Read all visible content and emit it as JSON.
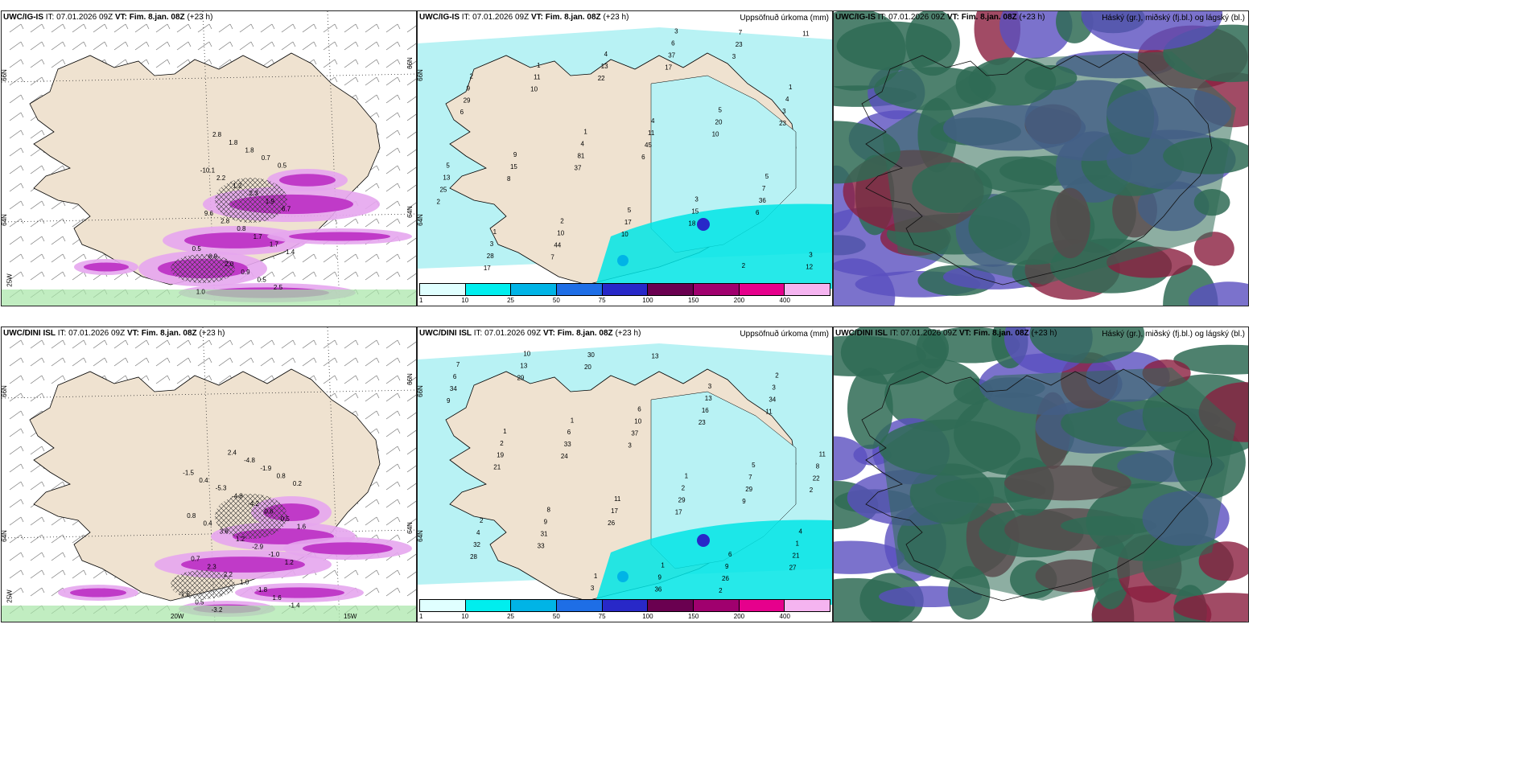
{
  "panels": [
    {
      "id": "p1",
      "model": "UWC/IG-IS",
      "it_label": "IT:",
      "it": "07.01.2026 09Z",
      "vt_label": "VT:",
      "vt": "Fim. 8.jan. 08Z",
      "lead": "(+23 h)",
      "right_title": "",
      "kind": "wind",
      "lat_labels": [
        "66N",
        "64N"
      ],
      "lat_right": [
        "66N",
        "64N"
      ],
      "lon_labels": [
        "25W"
      ],
      "values": [
        "0.5",
        "1.0",
        "-10.1",
        "9.6",
        "6.9",
        "2.8",
        "2.2",
        "2.8",
        "2.0",
        "1.8",
        "1.2",
        "0.8",
        "0.9",
        "1.8",
        "2.3",
        "1.7",
        "0.5",
        "0.7",
        "1.9",
        "1.7",
        "2.5",
        "0.5",
        "6.7",
        "1.4"
      ]
    },
    {
      "id": "p2",
      "model": "UWC/IG-IS",
      "it_label": "IT:",
      "it": "07.01.2026 09Z",
      "vt_label": "VT:",
      "vt": "Fim. 8.jan. 08Z",
      "lead": "(+23 h)",
      "right_title": "Uppsöfnuð úrkoma (mm)",
      "kind": "precip",
      "lat_labels": [
        "66N",
        "64N"
      ],
      "values": [
        "1",
        "1",
        "1",
        "3",
        "5",
        "2",
        "2",
        "4",
        "2",
        "5",
        "1",
        "5",
        "5",
        "3",
        "9",
        "4",
        "3",
        "4",
        "3",
        "4",
        "6",
        "7",
        "9",
        "10",
        "11",
        "7",
        "13",
        "11",
        "17",
        "20",
        "12",
        "15",
        "13",
        "15",
        "3",
        "28",
        "81",
        "37",
        "36",
        "29",
        "44",
        "45",
        "23",
        "25",
        "10",
        "10",
        "10",
        "11",
        "8",
        "22",
        "18",
        "23",
        "17",
        "37",
        "17",
        "6",
        "6",
        "7",
        "6",
        "3",
        "2"
      ]
    },
    {
      "id": "p3",
      "model": "UWC/IG-IS",
      "it_label": "IT:",
      "it": "07.01.2026 09Z",
      "vt_label": "VT:",
      "vt": "Fim. 8.jan. 08Z",
      "lead": "(+23 h)",
      "right_title": "Háský (gr.), miðský (fj.bl.) og lágský (bl.)",
      "kind": "cloud"
    },
    {
      "id": "p4",
      "model": "UWC/DINI ISL",
      "it_label": "IT:",
      "it": "07.01.2026 09Z",
      "vt_label": "VT:",
      "vt": "Fim. 8.jan. 08Z",
      "lead": "(+23 h)",
      "right_title": "",
      "kind": "wind",
      "lat_labels": [
        "66N",
        "64N"
      ],
      "lat_right": [
        "66N",
        "64N"
      ],
      "lon_labels": [
        "25W",
        "20W",
        "15W"
      ],
      "values": [
        "-1.5",
        "-1.5",
        "0.8",
        "0.7",
        "0.5",
        "0.4",
        "0.4",
        "2.3",
        "-3.2",
        "-5.3",
        "3.6",
        "2.2",
        "2.4",
        "-4.8",
        "1.2",
        "1.0",
        "-4.8",
        "-4.2",
        "-2.9",
        "-1.8",
        "-1.9",
        "0.6",
        "-1.0",
        "1.6",
        "0.8",
        "0.5",
        "1.2",
        "-1.4",
        "0.2",
        "1.6"
      ]
    },
    {
      "id": "p5",
      "model": "UWC/DINI ISL",
      "it_label": "IT:",
      "it": "07.01.2026 09Z",
      "vt_label": "VT:",
      "vt": "Fim. 8.jan. 08Z",
      "lead": "(+23 h)",
      "right_title": "Uppsöfnuð úrkoma (mm)",
      "kind": "precip",
      "lat_labels": [
        "66N",
        "64N"
      ],
      "values": [
        "3",
        "4",
        "1",
        "1",
        "1",
        "2",
        "2",
        "1",
        "1",
        "5",
        "7",
        "8",
        "6",
        "6",
        "11",
        "10",
        "11",
        "13",
        "1",
        "2",
        "3",
        "2",
        "3",
        "4",
        "6",
        "9",
        "7",
        "6",
        "9",
        "10",
        "9",
        "8",
        "13",
        "17",
        "16",
        "21",
        "19",
        "30",
        "29",
        "34",
        "32",
        "33",
        "36",
        "29",
        "34",
        "31",
        "37",
        "26",
        "22",
        "29",
        "26",
        "23",
        "27",
        "21",
        "20",
        "17",
        "11",
        "28",
        "24",
        "13",
        "9",
        "9",
        "33",
        "3",
        "2",
        "2"
      ]
    },
    {
      "id": "p6",
      "model": "UWC/DINI ISL",
      "it_label": "IT:",
      "it": "07.01.2026 09Z",
      "vt_label": "VT:",
      "vt": "Fim. 8.jan. 08Z",
      "lead": "(+23 h)",
      "right_title": "Háský (gr.), miðský (fj.bl.) og lágský (bl.)",
      "kind": "cloud"
    }
  ],
  "colorbar": {
    "ticks": [
      "1",
      "10",
      "25",
      "50",
      "75",
      "100",
      "150",
      "200",
      "400"
    ],
    "colors": [
      "#e0ffff",
      "#00eeee",
      "#00b4e6",
      "#1e6ee6",
      "#2828c8",
      "#6a0050",
      "#a0006e",
      "#e6008c",
      "#f5b4f0"
    ]
  },
  "colors": {
    "land": "#efe2d0",
    "ocean": "#ffffff",
    "precip_light": "#b8f2f4",
    "precip_mid": "#00e5e5",
    "magenta": "#c03ac8",
    "green_low": "#a6e6a6",
    "cloud_high": "#2f6b55",
    "cloud_mid": "#5a4fbf",
    "cloud_low": "#8a1e3e"
  }
}
